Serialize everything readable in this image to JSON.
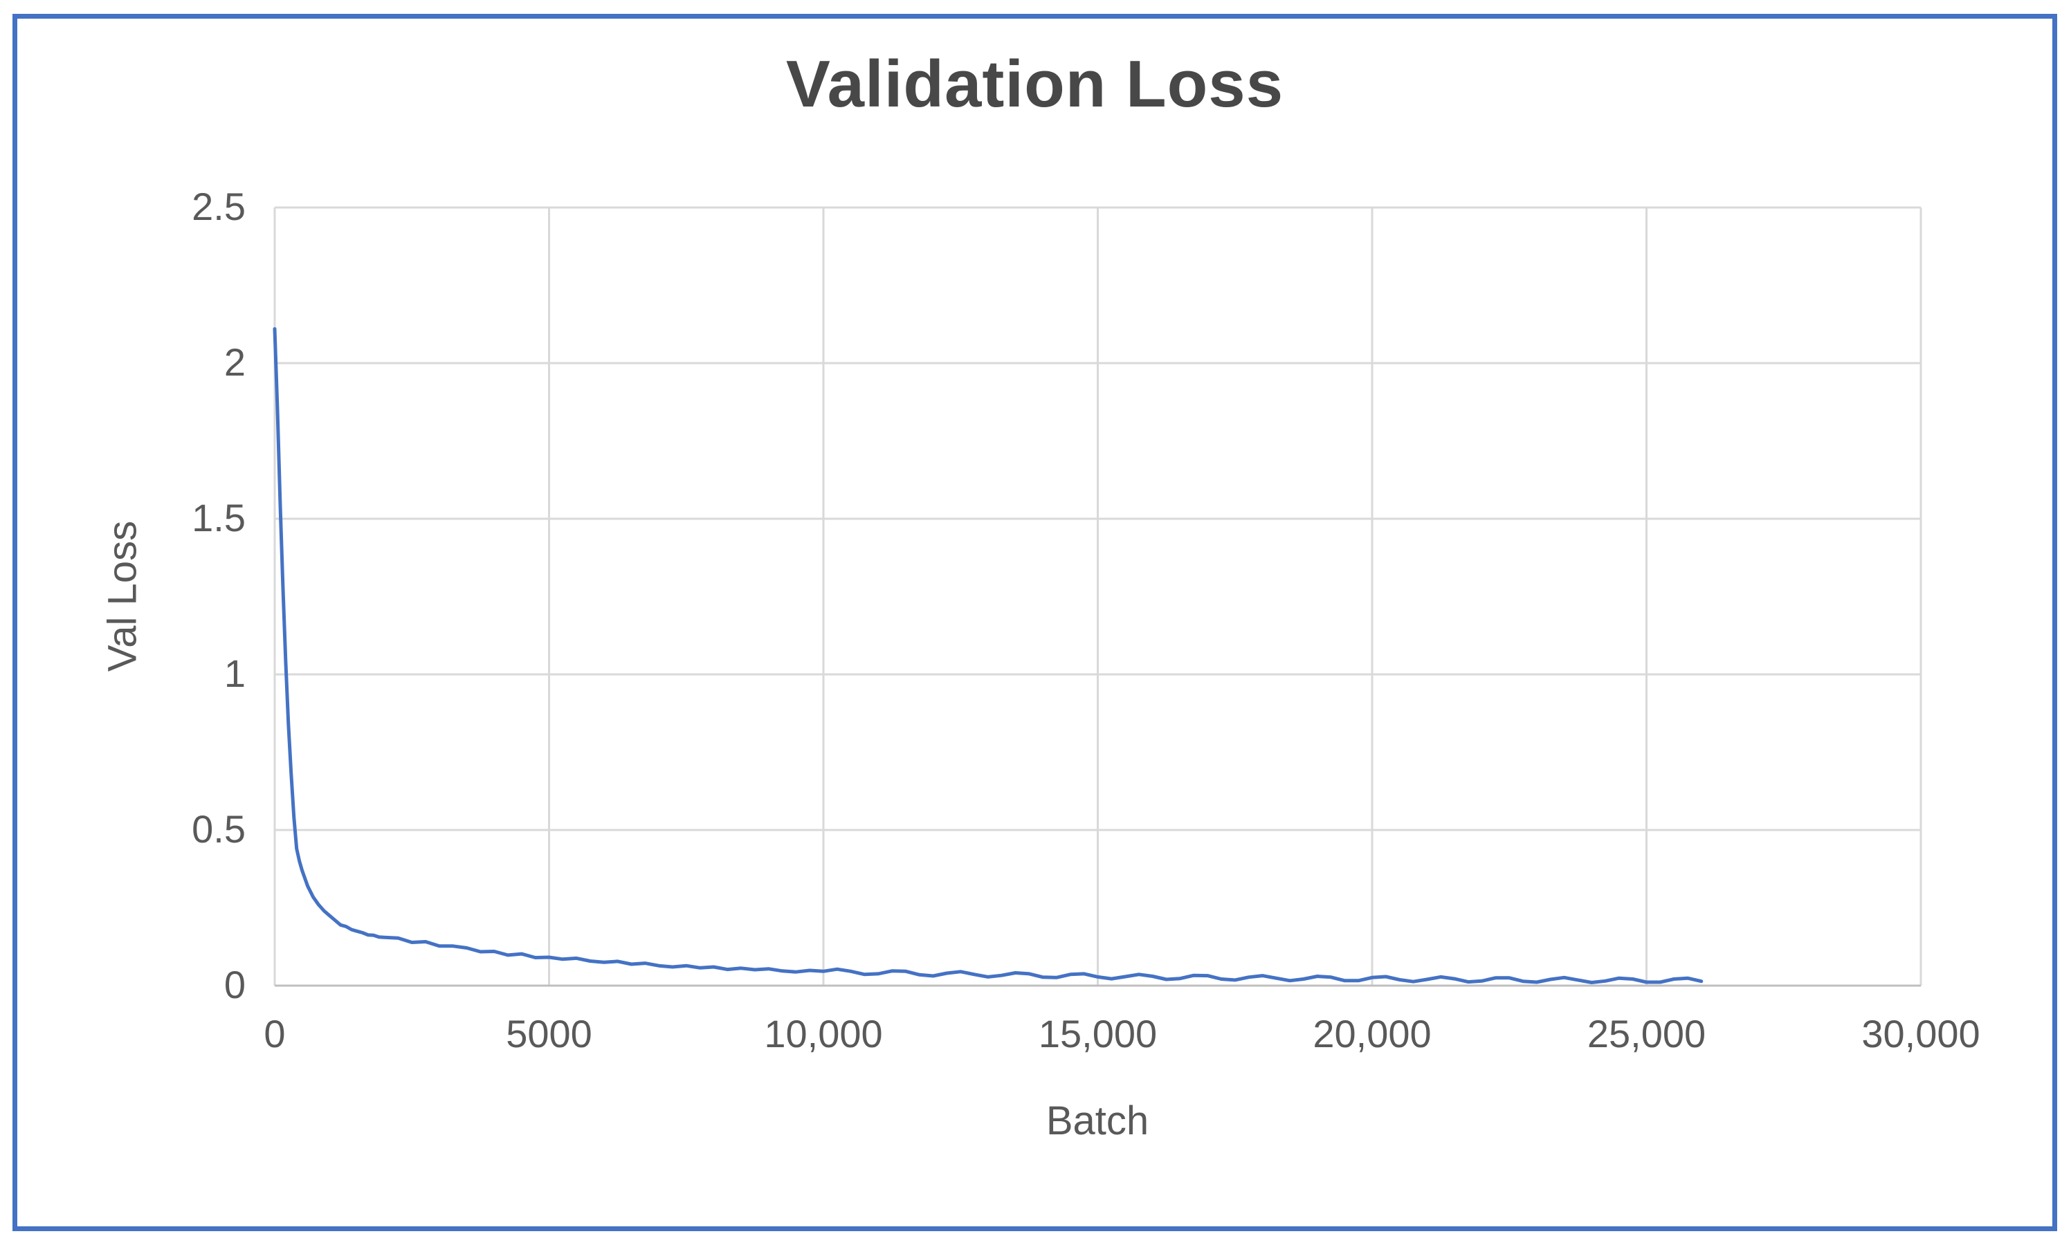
{
  "figure": {
    "border_color": "#4472C4",
    "background_color": "#FFFFFF",
    "text_color": "#595959",
    "title_color": "#484848",
    "gridline_color": "#D9D9D9",
    "axis_line_color": "#BFBFBF"
  },
  "chart_data": {
    "type": "line",
    "title": "Validation Loss",
    "xlabel": "Batch",
    "ylabel": "Val Loss",
    "xlim": [
      0,
      30000
    ],
    "ylim": [
      0,
      2.5
    ],
    "grid": true,
    "legend": false,
    "x_tick_labels": [
      "0",
      "5000",
      "10,000",
      "15,000",
      "20,000",
      "25,000",
      "30,000"
    ],
    "x_tick_values": [
      0,
      5000,
      10000,
      15000,
      20000,
      25000,
      30000
    ],
    "y_tick_labels": [
      "0",
      "0.5",
      "1",
      "1.5",
      "2",
      "2.5"
    ],
    "y_tick_values": [
      0,
      0.5,
      1,
      1.5,
      2,
      2.5
    ],
    "series": [
      {
        "name": "Val Loss",
        "color": "#4472C4",
        "points": [
          [
            0,
            2.11
          ],
          [
            50,
            1.85
          ],
          [
            100,
            1.55
          ],
          [
            150,
            1.28
          ],
          [
            200,
            1.04
          ],
          [
            250,
            0.84
          ],
          [
            300,
            0.68
          ],
          [
            350,
            0.54
          ],
          [
            400,
            0.44
          ],
          [
            450,
            0.4
          ],
          [
            500,
            0.37
          ],
          [
            600,
            0.32
          ],
          [
            700,
            0.285
          ],
          [
            800,
            0.26
          ],
          [
            900,
            0.24
          ],
          [
            1000,
            0.225
          ],
          [
            1100,
            0.21
          ],
          [
            1200,
            0.195
          ],
          [
            1300,
            0.19
          ],
          [
            1400,
            0.18
          ],
          [
            1500,
            0.175
          ],
          [
            1600,
            0.17
          ],
          [
            1700,
            0.163
          ],
          [
            1800,
            0.162
          ],
          [
            1900,
            0.156
          ],
          [
            2000,
            0.155
          ],
          [
            2250,
            0.153
          ],
          [
            2500,
            0.139
          ],
          [
            2750,
            0.141
          ],
          [
            3000,
            0.127
          ],
          [
            3250,
            0.127
          ],
          [
            3500,
            0.121
          ],
          [
            3750,
            0.109
          ],
          [
            4000,
            0.11
          ],
          [
            4250,
            0.098
          ],
          [
            4500,
            0.102
          ],
          [
            4750,
            0.09
          ],
          [
            5000,
            0.091
          ],
          [
            5250,
            0.085
          ],
          [
            5500,
            0.088
          ],
          [
            5750,
            0.079
          ],
          [
            6000,
            0.075
          ],
          [
            6250,
            0.078
          ],
          [
            6500,
            0.069
          ],
          [
            6750,
            0.072
          ],
          [
            7000,
            0.064
          ],
          [
            7250,
            0.06
          ],
          [
            7500,
            0.064
          ],
          [
            7750,
            0.057
          ],
          [
            8000,
            0.06
          ],
          [
            8250,
            0.052
          ],
          [
            8500,
            0.056
          ],
          [
            8750,
            0.051
          ],
          [
            9000,
            0.054
          ],
          [
            9250,
            0.047
          ],
          [
            9500,
            0.044
          ],
          [
            9750,
            0.049
          ],
          [
            10000,
            0.046
          ],
          [
            10250,
            0.053
          ],
          [
            10500,
            0.046
          ],
          [
            10750,
            0.036
          ],
          [
            11000,
            0.038
          ],
          [
            11250,
            0.047
          ],
          [
            11500,
            0.046
          ],
          [
            11750,
            0.035
          ],
          [
            12000,
            0.031
          ],
          [
            12250,
            0.04
          ],
          [
            12500,
            0.045
          ],
          [
            12750,
            0.036
          ],
          [
            13000,
            0.028
          ],
          [
            13250,
            0.033
          ],
          [
            13500,
            0.041
          ],
          [
            13750,
            0.038
          ],
          [
            14000,
            0.027
          ],
          [
            14250,
            0.026
          ],
          [
            14500,
            0.036
          ],
          [
            14750,
            0.038
          ],
          [
            15000,
            0.028
          ],
          [
            15250,
            0.022
          ],
          [
            15500,
            0.029
          ],
          [
            15750,
            0.036
          ],
          [
            16000,
            0.03
          ],
          [
            16250,
            0.02
          ],
          [
            16500,
            0.023
          ],
          [
            16750,
            0.033
          ],
          [
            17000,
            0.032
          ],
          [
            17250,
            0.021
          ],
          [
            17500,
            0.018
          ],
          [
            17750,
            0.027
          ],
          [
            18000,
            0.032
          ],
          [
            18250,
            0.024
          ],
          [
            18500,
            0.016
          ],
          [
            18750,
            0.021
          ],
          [
            19000,
            0.03
          ],
          [
            19250,
            0.027
          ],
          [
            19500,
            0.016
          ],
          [
            19750,
            0.016
          ],
          [
            20000,
            0.026
          ],
          [
            20250,
            0.029
          ],
          [
            20500,
            0.019
          ],
          [
            20750,
            0.013
          ],
          [
            21000,
            0.02
          ],
          [
            21250,
            0.028
          ],
          [
            21500,
            0.022
          ],
          [
            21750,
            0.012
          ],
          [
            22000,
            0.015
          ],
          [
            22250,
            0.025
          ],
          [
            22500,
            0.025
          ],
          [
            22750,
            0.014
          ],
          [
            23000,
            0.011
          ],
          [
            23250,
            0.02
          ],
          [
            23500,
            0.026
          ],
          [
            23750,
            0.018
          ],
          [
            24000,
            0.01
          ],
          [
            24250,
            0.015
          ],
          [
            24500,
            0.024
          ],
          [
            24750,
            0.021
          ],
          [
            25000,
            0.011
          ],
          [
            25250,
            0.011
          ],
          [
            25500,
            0.021
          ],
          [
            25750,
            0.024
          ],
          [
            26000,
            0.014
          ]
        ]
      }
    ]
  }
}
